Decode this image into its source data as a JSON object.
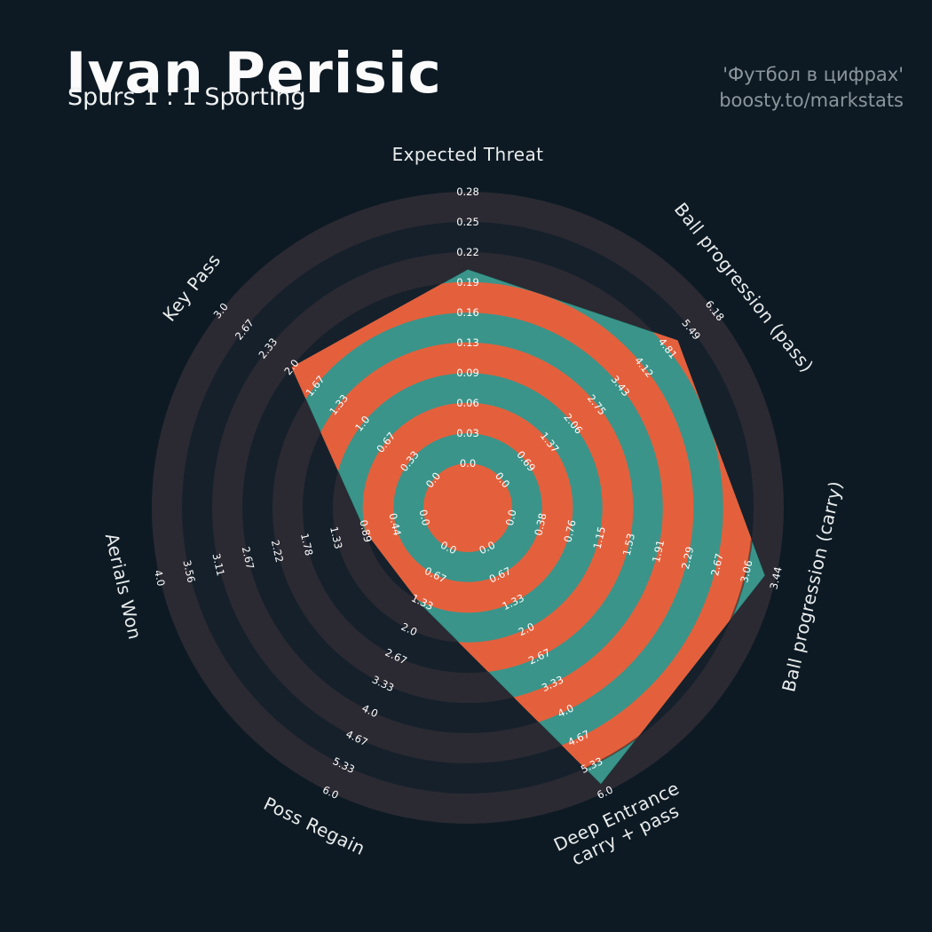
{
  "header": {
    "title": "Ivan Perisic",
    "subtitle": "Spurs 1 : 1 Sporting",
    "credit_line1": "'Футбол в цифрах'",
    "credit_line2": "boosty.to/markstats"
  },
  "colors": {
    "background": "#0d1a24",
    "ring_dark_a": "#2b2a33",
    "ring_dark_b": "#16202b",
    "teal": "#3a948a",
    "orange": "#e4603c",
    "tick_text": "#ffffff",
    "label_text": "#e9ecec",
    "muted_text": "#8b959c"
  },
  "chart_data": {
    "type": "radar",
    "title": "Ivan Perisic",
    "subtitle": "Spurs 1 : 1 Sporting",
    "num_rings": 9,
    "axes": [
      {
        "label": "Expected Threat",
        "min": 0,
        "max": 0.28,
        "value": 0.2,
        "ticks": [
          "0.0",
          "0.03",
          "0.06",
          "0.09",
          "0.13",
          "0.16",
          "0.19",
          "0.22",
          "0.25",
          "0.28"
        ]
      },
      {
        "label": "Ball progression (pass)",
        "min": 0,
        "max": 6.18,
        "value": 5.1,
        "ticks": [
          "0.0",
          "0.69",
          "1.37",
          "2.06",
          "2.75",
          "3.43",
          "4.12",
          "4.81",
          "5.49",
          "6.18"
        ]
      },
      {
        "label": "Ball progression (carry)",
        "min": 0,
        "max": 3.44,
        "value": 3.3,
        "ticks": [
          "0.0",
          "0.38",
          "0.76",
          "1.15",
          "1.53",
          "1.91",
          "2.29",
          "2.67",
          "3.06",
          "3.44"
        ]
      },
      {
        "label": "Deep Entrance carry + pass",
        "lines": [
          "Deep Entrance",
          "carry + pass"
        ],
        "min": 0,
        "max": 6.0,
        "value": 5.8,
        "ticks": [
          "0.0",
          "0.67",
          "1.33",
          "2.0",
          "2.67",
          "3.33",
          "4.0",
          "4.67",
          "5.33",
          "6.0"
        ]
      },
      {
        "label": "Poss Regain",
        "min": 0,
        "max": 6.0,
        "value": 1.4,
        "ticks": [
          "0.0",
          "0.67",
          "1.33",
          "2.0",
          "2.67",
          "3.33",
          "4.0",
          "4.67",
          "5.33",
          "6.0"
        ]
      },
      {
        "label": "Aerials Won",
        "min": 0,
        "max": 4.0,
        "value": 0.9,
        "ticks": [
          "0.0",
          "0.44",
          "0.89",
          "1.33",
          "1.78",
          "2.22",
          "2.67",
          "3.11",
          "3.56",
          "4.0"
        ]
      },
      {
        "label": "Key Pass",
        "min": 0,
        "max": 3.0,
        "value": 2.0,
        "ticks": [
          "0.0",
          "0.33",
          "0.67",
          "1.0",
          "1.33",
          "1.67",
          "2.0",
          "2.33",
          "2.67",
          "3.0"
        ]
      }
    ]
  }
}
